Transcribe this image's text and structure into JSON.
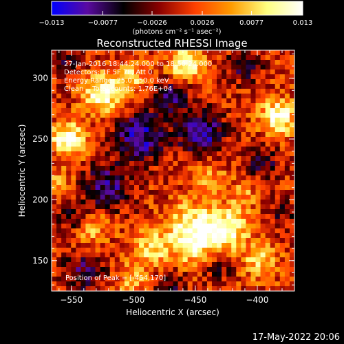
{
  "chart_data": {
    "type": "heatmap",
    "title": "Reconstructed RHESSI Image",
    "xlabel": "Heliocentric X (arcsec)",
    "ylabel": "Heliocentric Y (arcsec)",
    "xlim": [
      -566,
      -370
    ],
    "ylim": [
      125,
      323
    ],
    "x_ticks": [
      -550,
      -500,
      -450,
      -400
    ],
    "y_ticks": [
      150,
      200,
      250,
      300
    ],
    "colorbar": {
      "min": -0.013,
      "max": 0.013,
      "tick_values": [
        -0.013,
        -0.0077,
        -0.0026,
        0.0026,
        0.0077,
        0.013
      ],
      "tick_labels": [
        "-0.013",
        "-0.0077",
        "-0.0026",
        "0.0026",
        "0.0077",
        "0.013"
      ],
      "unit_label": "(photons cm⁻² s⁻¹ asec⁻²)",
      "colormap": [
        "#0000ff",
        "#5a0aa0",
        "#000000",
        "#8a0000",
        "#ff4000",
        "#ff9b00",
        "#ffff80",
        "#ffffff"
      ]
    },
    "sources": [
      {
        "x": -451,
        "y": 172,
        "amp": 1.0,
        "sigma": 16
      },
      {
        "x": -424,
        "y": 176,
        "amp": 0.7,
        "sigma": 12
      },
      {
        "x": -486,
        "y": 160,
        "amp": 0.55,
        "sigma": 10
      },
      {
        "x": -535,
        "y": 179,
        "amp": 0.5,
        "sigma": 11
      },
      {
        "x": -524,
        "y": 288,
        "amp": 0.92,
        "sigma": 11
      },
      {
        "x": -502,
        "y": 300,
        "amp": 0.55,
        "sigma": 9
      },
      {
        "x": -458,
        "y": 311,
        "amp": 0.8,
        "sigma": 10
      },
      {
        "x": -383,
        "y": 268,
        "amp": 0.92,
        "sigma": 10
      },
      {
        "x": -552,
        "y": 250,
        "amp": 0.9,
        "sigma": 10
      },
      {
        "x": -398,
        "y": 150,
        "amp": 0.55,
        "sigma": 10
      },
      {
        "x": -440,
        "y": 220,
        "amp": 0.38,
        "sigma": 10
      },
      {
        "x": -560,
        "y": 215,
        "amp": 0.35,
        "sigma": 8
      },
      {
        "x": -500,
        "y": 135,
        "amp": 0.45,
        "sigma": 9
      },
      {
        "x": -410,
        "y": 205,
        "amp": 0.3,
        "sigma": 9
      },
      {
        "x": -495,
        "y": 252,
        "amp": -0.85,
        "sigma": 14
      },
      {
        "x": -445,
        "y": 254,
        "amp": -0.8,
        "sigma": 13
      },
      {
        "x": -522,
        "y": 210,
        "amp": -0.75,
        "sigma": 13
      },
      {
        "x": -548,
        "y": 185,
        "amp": -0.55,
        "sigma": 9
      },
      {
        "x": -470,
        "y": 285,
        "amp": -0.6,
        "sigma": 11
      },
      {
        "x": -410,
        "y": 310,
        "amp": -0.5,
        "sigma": 10
      },
      {
        "x": -395,
        "y": 230,
        "amp": -0.45,
        "sigma": 10
      },
      {
        "x": -540,
        "y": 140,
        "amp": -0.55,
        "sigma": 12
      },
      {
        "x": -470,
        "y": 130,
        "amp": -0.5,
        "sigma": 9
      },
      {
        "x": -432,
        "y": 145,
        "amp": -0.45,
        "sigma": 9
      },
      {
        "x": -555,
        "y": 315,
        "amp": -0.4,
        "sigma": 10
      },
      {
        "x": -380,
        "y": 190,
        "amp": -0.35,
        "sigma": 9
      }
    ]
  },
  "annotations": {
    "time_range": "27-Jan-2016 18:44:24.000 to 18:50:24.000",
    "detectors": "Detectors: 1F 5F 7F, Att 0",
    "energy_range": "Energy Range: 25.0 - 50.0 keV",
    "clean_counts": "Clean    Total counts: 1.76E+04",
    "peak_position": "Position of Peak = [-454,170]"
  },
  "footer": {
    "timestamp": "17-May-2022 20:06"
  }
}
